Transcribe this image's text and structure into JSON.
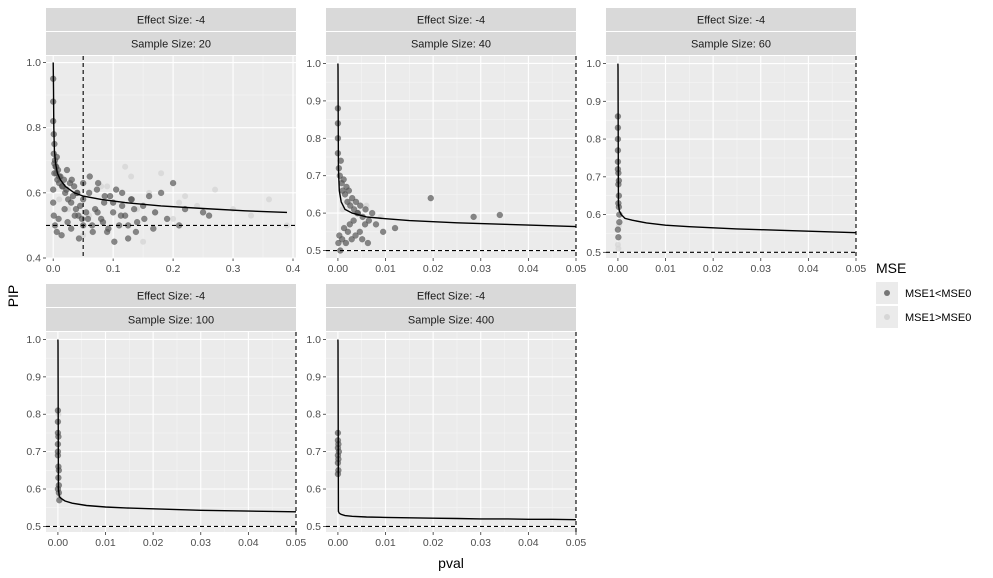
{
  "chart_data": {
    "type": "scatter",
    "xlabel": "pval",
    "ylabel": "PIP",
    "legend": {
      "title": "MSE",
      "placement": "right",
      "entries": [
        {
          "label": "MSE1<MSE0",
          "color": "#595959"
        },
        {
          "label": "MSE1>MSE0",
          "color": "#d4d4d4"
        }
      ]
    },
    "reference_lines": {
      "vline_x": 0.05,
      "hline_y": 0.5
    },
    "panels": [
      {
        "strip": [
          "Effect Size: -4",
          "Sample Size: 20"
        ],
        "xlim": [
          -0.012,
          0.405
        ],
        "ylim": [
          0.4,
          1.02
        ],
        "xticks": [
          0.0,
          0.1,
          0.2,
          0.3,
          0.4
        ],
        "xtick_labels": [
          "0.0",
          "0.1",
          "0.2",
          "0.3",
          "0.4"
        ],
        "yticks": [
          0.4,
          0.6,
          0.8,
          1.0
        ],
        "ytick_labels": [
          "0.4",
          "0.6",
          "0.8",
          "1.0"
        ],
        "curve": {
          "x": [
            0.0005,
            0.001,
            0.002,
            0.004,
            0.007,
            0.012,
            0.02,
            0.035,
            0.05,
            0.08,
            0.12,
            0.18,
            0.25,
            0.32,
            0.39
          ],
          "y": [
            0.92,
            0.8,
            0.73,
            0.69,
            0.66,
            0.64,
            0.62,
            0.6,
            0.59,
            0.58,
            0.57,
            0.56,
            0.552,
            0.545,
            0.54
          ]
        },
        "points_dark": {
          "x": [
            0.0,
            0.0,
            0.0,
            0.001,
            0.001,
            0.002,
            0.002,
            0.003,
            0.004,
            0.005,
            0.006,
            0.007,
            0.008,
            0.01,
            0.012,
            0.015,
            0.018,
            0.02,
            0.022,
            0.025,
            0.028,
            0.03,
            0.033,
            0.035,
            0.038,
            0.04,
            0.042,
            0.045,
            0.048,
            0.05,
            0.055,
            0.06,
            0.065,
            0.07,
            0.075,
            0.08,
            0.085,
            0.09,
            0.095,
            0.1,
            0.105,
            0.11,
            0.115,
            0.12,
            0.125,
            0.13,
            0.135,
            0.14,
            0.15,
            0.16,
            0.17,
            0.18,
            0.19,
            0.2,
            0.21,
            0.22,
            0.25,
            0.26,
            0.0,
            0.001,
            0.003,
            0.006,
            0.009,
            0.014,
            0.019,
            0.024,
            0.03,
            0.036,
            0.043,
            0.05,
            0.058,
            0.066,
            0.074,
            0.083,
            0.092,
            0.102,
            0.113,
            0.125,
            0.138,
            0.152,
            0.167,
            0.0,
            0.002,
            0.005,
            0.01,
            0.016,
            0.023,
            0.031,
            0.04,
            0.05,
            0.061,
            0.073,
            0.086,
            0.1,
            0.115,
            0.131
          ],
          "y": [
            0.95,
            0.88,
            0.82,
            0.78,
            0.72,
            0.75,
            0.69,
            0.7,
            0.68,
            0.66,
            0.71,
            0.64,
            0.67,
            0.63,
            0.65,
            0.62,
            0.64,
            0.6,
            0.61,
            0.58,
            0.63,
            0.57,
            0.59,
            0.62,
            0.55,
            0.6,
            0.53,
            0.56,
            0.52,
            0.58,
            0.54,
            0.6,
            0.5,
            0.55,
            0.63,
            0.52,
            0.57,
            0.48,
            0.59,
            0.54,
            0.61,
            0.5,
            0.56,
            0.53,
            0.46,
            0.58,
            0.55,
            0.51,
            0.56,
            0.59,
            0.54,
            0.6,
            0.52,
            0.63,
            0.5,
            0.55,
            0.54,
            0.53,
            0.57,
            0.53,
            0.5,
            0.48,
            0.52,
            0.47,
            0.55,
            0.51,
            0.49,
            0.53,
            0.46,
            0.5,
            0.52,
            0.48,
            0.54,
            0.51,
            0.49,
            0.45,
            0.53,
            0.5,
            0.48,
            0.52,
            0.49,
            0.61,
            0.66,
            0.68,
            0.65,
            0.62,
            0.67,
            0.64,
            0.6,
            0.63,
            0.65,
            0.61,
            0.59,
            0.57,
            0.6,
            0.58
          ]
        },
        "points_light": {
          "x": [
            0.01,
            0.025,
            0.04,
            0.06,
            0.08,
            0.1,
            0.12,
            0.14,
            0.16,
            0.18,
            0.2,
            0.22,
            0.24,
            0.27,
            0.3,
            0.33,
            0.36,
            0.39,
            0.05,
            0.09,
            0.13,
            0.17,
            0.21,
            0.15
          ],
          "y": [
            0.58,
            0.55,
            0.6,
            0.53,
            0.62,
            0.57,
            0.68,
            0.55,
            0.6,
            0.66,
            0.52,
            0.59,
            0.56,
            0.61,
            0.55,
            0.53,
            0.58,
            0.5,
            0.47,
            0.62,
            0.65,
            0.54,
            0.57,
            0.45
          ]
        }
      },
      {
        "strip": [
          "Effect Size: -4",
          "Sample Size: 40"
        ],
        "xlim": [
          -0.0025,
          0.05
        ],
        "ylim": [
          0.48,
          1.02
        ],
        "xticks": [
          0.0,
          0.01,
          0.02,
          0.03,
          0.04,
          0.05
        ],
        "xtick_labels": [
          "0.00",
          "0.01",
          "0.02",
          "0.03",
          "0.04",
          "0.05"
        ],
        "yticks": [
          0.5,
          0.6,
          0.7,
          0.8,
          0.9,
          1.0
        ],
        "ytick_labels": [
          "0.5",
          "0.6",
          "0.7",
          "0.8",
          "0.9",
          "1.0"
        ],
        "curve": {
          "x": [
            1e-05,
            0.0001,
            0.0003,
            0.0007,
            0.0015,
            0.003,
            0.006,
            0.01,
            0.015,
            0.02,
            0.025,
            0.03,
            0.035,
            0.04,
            0.045,
            0.05
          ],
          "y": [
            0.99,
            0.72,
            0.66,
            0.63,
            0.61,
            0.6,
            0.59,
            0.585,
            0.58,
            0.577,
            0.574,
            0.572,
            0.57,
            0.568,
            0.566,
            0.564
          ]
        },
        "points_dark": {
          "x": [
            0.0,
            0.0,
            0.0,
            0.0,
            0.0002,
            0.0004,
            0.0006,
            0.0008,
            0.001,
            0.0012,
            0.0015,
            0.0018,
            0.002,
            0.0023,
            0.0026,
            0.003,
            0.0034,
            0.0038,
            0.0042,
            0.0047,
            0.0052,
            0.0058,
            0.0065,
            0.0072,
            0.008,
            0.0095,
            0.012,
            0.0195,
            0.0285,
            0.034,
            0.0001,
            0.0003,
            0.0005,
            0.0009,
            0.0013,
            0.0017,
            0.0021,
            0.0025,
            0.0029,
            0.0033,
            0.0037,
            0.0041,
            0.0046,
            0.0051,
            0.0057,
            0.0063
          ],
          "y": [
            0.88,
            0.84,
            0.8,
            0.76,
            0.72,
            0.7,
            0.74,
            0.68,
            0.66,
            0.69,
            0.65,
            0.67,
            0.63,
            0.66,
            0.62,
            0.64,
            0.61,
            0.63,
            0.6,
            0.62,
            0.59,
            0.61,
            0.58,
            0.6,
            0.57,
            0.55,
            0.56,
            0.64,
            0.59,
            0.595,
            0.52,
            0.54,
            0.5,
            0.53,
            0.56,
            0.52,
            0.55,
            0.57,
            0.53,
            0.58,
            0.54,
            0.6,
            0.55,
            0.53,
            0.57,
            0.52
          ]
        },
        "points_light": {
          "x": [
            0.001,
            0.0025,
            0.004,
            0.006,
            0.009,
            0.0005,
            0.0015
          ],
          "y": [
            0.61,
            0.63,
            0.6,
            0.62,
            0.59,
            0.5,
            0.52
          ]
        }
      },
      {
        "strip": [
          "Effect Size: -4",
          "Sample Size: 60"
        ],
        "xlim": [
          -0.0025,
          0.05
        ],
        "ylim": [
          0.485,
          1.02
        ],
        "xticks": [
          0.0,
          0.01,
          0.02,
          0.03,
          0.04,
          0.05
        ],
        "xtick_labels": [
          "0.00",
          "0.01",
          "0.02",
          "0.03",
          "0.04",
          "0.05"
        ],
        "yticks": [
          0.5,
          0.6,
          0.7,
          0.8,
          0.9,
          1.0
        ],
        "ytick_labels": [
          "0.5",
          "0.6",
          "0.7",
          "0.8",
          "0.9",
          "1.0"
        ],
        "curve": {
          "x": [
            1e-05,
            0.0001,
            0.0003,
            0.0007,
            0.0015,
            0.003,
            0.006,
            0.01,
            0.015,
            0.02,
            0.025,
            0.03,
            0.035,
            0.04,
            0.045,
            0.05
          ],
          "y": [
            0.99,
            0.63,
            0.61,
            0.6,
            0.59,
            0.585,
            0.578,
            0.572,
            0.568,
            0.565,
            0.562,
            0.56,
            0.558,
            0.556,
            0.554,
            0.552
          ]
        },
        "points_dark": {
          "x": [
            0.0,
            0.0,
            0.0,
            0.0,
            0.0,
            0.0001,
            0.0001,
            0.0002,
            0.0002,
            0.0003,
            0.0003,
            0.0,
            0.0001,
            0.0002,
            0.0,
            0.0001
          ],
          "y": [
            0.86,
            0.83,
            0.8,
            0.77,
            0.74,
            0.71,
            0.68,
            0.65,
            0.62,
            0.6,
            0.58,
            0.56,
            0.54,
            0.69,
            0.72,
            0.63
          ]
        },
        "points_light": {
          "x": [
            0.0,
            0.0001,
            0.0002
          ],
          "y": [
            0.52,
            0.51,
            0.57
          ]
        }
      },
      {
        "strip": [
          "Effect Size: -4",
          "Sample Size: 100"
        ],
        "xlim": [
          -0.0025,
          0.05
        ],
        "ylim": [
          0.485,
          1.02
        ],
        "xticks": [
          0.0,
          0.01,
          0.02,
          0.03,
          0.04,
          0.05
        ],
        "xtick_labels": [
          "0.00",
          "0.01",
          "0.02",
          "0.03",
          "0.04",
          "0.05"
        ],
        "yticks": [
          0.5,
          0.6,
          0.7,
          0.8,
          0.9,
          1.0
        ],
        "ytick_labels": [
          "0.5",
          "0.6",
          "0.7",
          "0.8",
          "0.9",
          "1.0"
        ],
        "curve": {
          "x": [
            1e-05,
            0.0001,
            0.0003,
            0.0007,
            0.0015,
            0.003,
            0.006,
            0.01,
            0.015,
            0.02,
            0.025,
            0.03,
            0.035,
            0.04,
            0.045,
            0.05
          ],
          "y": [
            0.99,
            0.6,
            0.58,
            0.575,
            0.568,
            0.562,
            0.556,
            0.552,
            0.549,
            0.547,
            0.545,
            0.543,
            0.542,
            0.541,
            0.54,
            0.539
          ]
        },
        "points_dark": {
          "x": [
            0.0,
            0.0,
            0.0,
            0.0,
            0.0,
            0.0001,
            0.0001,
            0.0002,
            0.0002,
            0.0003,
            0.0,
            0.0001,
            0.0002,
            0.0
          ],
          "y": [
            0.81,
            0.78,
            0.75,
            0.72,
            0.69,
            0.66,
            0.63,
            0.61,
            0.59,
            0.57,
            0.7,
            0.74,
            0.65,
            0.6
          ]
        },
        "points_light": {
          "x": [
            0.0001,
            0.0002
          ],
          "y": [
            0.8,
            0.58
          ]
        }
      },
      {
        "strip": [
          "Effect Size: -4",
          "Sample Size: 400"
        ],
        "xlim": [
          -0.0025,
          0.05
        ],
        "ylim": [
          0.485,
          1.02
        ],
        "xticks": [
          0.0,
          0.01,
          0.02,
          0.03,
          0.04,
          0.05
        ],
        "xtick_labels": [
          "0.00",
          "0.01",
          "0.02",
          "0.03",
          "0.04",
          "0.05"
        ],
        "yticks": [
          0.5,
          0.6,
          0.7,
          0.8,
          0.9,
          1.0
        ],
        "ytick_labels": [
          "0.5",
          "0.6",
          "0.7",
          "0.8",
          "0.9",
          "1.0"
        ],
        "curve": {
          "x": [
            1e-05,
            0.0001,
            0.0003,
            0.0007,
            0.0015,
            0.003,
            0.006,
            0.01,
            0.015,
            0.02,
            0.025,
            0.03,
            0.035,
            0.04,
            0.045,
            0.05
          ],
          "y": [
            0.99,
            0.54,
            0.535,
            0.532,
            0.529,
            0.527,
            0.525,
            0.524,
            0.523,
            0.522,
            0.521,
            0.52,
            0.52,
            0.519,
            0.519,
            0.518
          ]
        },
        "points_dark": {
          "x": [
            0.0,
            0.0,
            0.0,
            0.0,
            0.0,
            0.0001,
            0.0001,
            0.0002,
            0.0001,
            0.0
          ],
          "y": [
            0.75,
            0.73,
            0.71,
            0.69,
            0.67,
            0.65,
            0.72,
            0.7,
            0.68,
            0.64
          ]
        },
        "points_light": {
          "x": [
            0.0001
          ],
          "y": [
            0.66
          ]
        }
      }
    ]
  }
}
